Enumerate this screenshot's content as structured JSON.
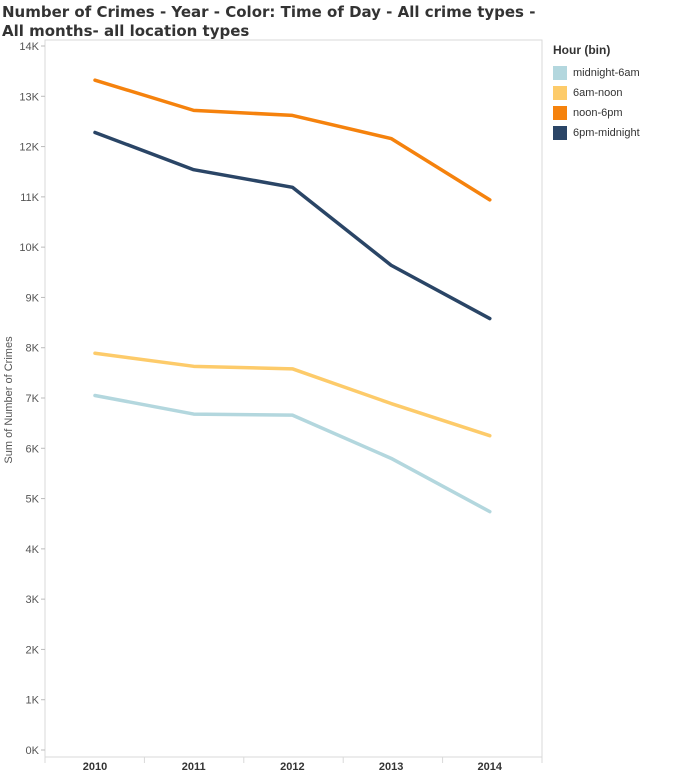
{
  "chart_data": {
    "type": "line",
    "title": "Number of Crimes - Year - Color: Time of Day - All crime types - All months- all location types",
    "xlabel": "",
    "ylabel": "Sum of Number of Crimes",
    "categories": [
      "2010",
      "2011",
      "2012",
      "2013",
      "2014"
    ],
    "ylim": [
      0,
      14000
    ],
    "yticks": [
      0,
      1000,
      2000,
      3000,
      4000,
      5000,
      6000,
      7000,
      8000,
      9000,
      10000,
      11000,
      12000,
      13000,
      14000
    ],
    "ytick_labels": [
      "0K",
      "1K",
      "2K",
      "3K",
      "4K",
      "5K",
      "6K",
      "7K",
      "8K",
      "9K",
      "10K",
      "11K",
      "12K",
      "13K",
      "14K"
    ],
    "grid": false,
    "legend": {
      "title": "Hour (bin)",
      "placement": "top-right"
    },
    "series": [
      {
        "name": "midnight-6am",
        "color": "#b3d7de",
        "values": [
          7050,
          6680,
          6660,
          5800,
          4740
        ]
      },
      {
        "name": "6am-noon",
        "color": "#fdcb6a",
        "values": [
          7890,
          7630,
          7580,
          6890,
          6250
        ]
      },
      {
        "name": "noon-6pm",
        "color": "#f5820d",
        "values": [
          13320,
          12720,
          12620,
          12160,
          10940
        ]
      },
      {
        "name": "6pm-midnight",
        "color": "#2a4566",
        "values": [
          12280,
          11540,
          11190,
          9640,
          8580
        ]
      }
    ]
  }
}
